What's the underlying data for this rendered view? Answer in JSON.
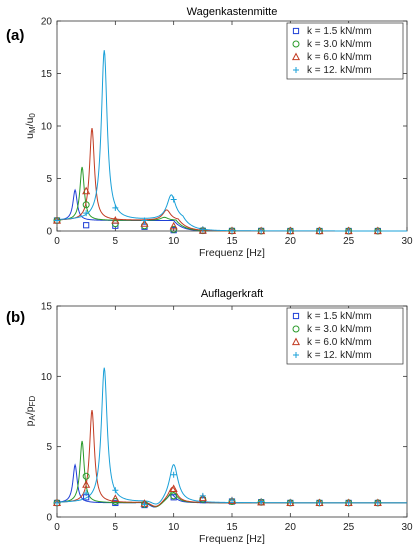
{
  "chart_data": [
    {
      "panel_label": "(a)",
      "type": "line",
      "title": "Wagenkastenmitte",
      "xlabel": "Frequenz [Hz]",
      "ylabel": "u_M/u_0",
      "xlim": [
        0,
        30
      ],
      "ylim": [
        0,
        20
      ],
      "xticks": [
        0,
        5,
        10,
        15,
        20,
        25,
        30
      ],
      "yticks": [
        0,
        5,
        10,
        15,
        20
      ],
      "legend_position": "top-right",
      "grid": false,
      "series": [
        {
          "name": "k = 1.5 kN/mm",
          "marker": "square",
          "color": "#1f3fd6",
          "markers": [
            [
              0,
              1.0
            ],
            [
              2.5,
              0.55
            ],
            [
              5,
              0.5
            ],
            [
              7.5,
              0.4
            ],
            [
              10,
              0.08
            ],
            [
              12.5,
              0.02
            ],
            [
              15,
              0.01
            ],
            [
              17.5,
              0.01
            ],
            [
              20,
              0.0
            ],
            [
              22.5,
              0.0
            ],
            [
              25,
              0.0
            ],
            [
              27.5,
              0.0
            ]
          ],
          "peaks": [
            [
              1.55,
              3.9,
              0.22
            ],
            [
              9.0,
              1.0,
              0.4
            ]
          ],
          "base": 1.0
        },
        {
          "name": "k = 3.0 kN/mm",
          "marker": "circle",
          "color": "#2a9a2a",
          "markers": [
            [
              0,
              1.0
            ],
            [
              2.5,
              2.5
            ],
            [
              5,
              0.7
            ],
            [
              7.5,
              0.5
            ],
            [
              10,
              0.15
            ],
            [
              12.5,
              0.03
            ],
            [
              15,
              0.01
            ],
            [
              17.5,
              0.0
            ],
            [
              20,
              0.0
            ],
            [
              22.5,
              0.0
            ],
            [
              25,
              0.0
            ],
            [
              27.5,
              0.0
            ]
          ],
          "peaks": [
            [
              2.15,
              6.1,
              0.22
            ],
            [
              9.2,
              1.3,
              0.4
            ]
          ],
          "base": 1.0
        },
        {
          "name": "k = 6.0 kN/mm",
          "marker": "triangle",
          "color": "#c23b22",
          "markers": [
            [
              0,
              1.0
            ],
            [
              2.5,
              3.8
            ],
            [
              5,
              1.0
            ],
            [
              7.5,
              0.7
            ],
            [
              10,
              0.45
            ],
            [
              12.5,
              0.05
            ],
            [
              15,
              0.01
            ],
            [
              17.5,
              0.0
            ],
            [
              20,
              0.0
            ],
            [
              22.5,
              0.0
            ],
            [
              25,
              0.0
            ],
            [
              27.5,
              0.0
            ]
          ],
          "peaks": [
            [
              3.0,
              9.8,
              0.25
            ],
            [
              9.4,
              2.0,
              0.4
            ]
          ],
          "base": 1.0
        },
        {
          "name": "k = 12. kN/mm",
          "marker": "plus",
          "color": "#1aa0d8",
          "markers": [
            [
              0,
              1.0
            ],
            [
              2.5,
              1.7
            ],
            [
              5,
              2.2
            ],
            [
              7.5,
              1.0
            ],
            [
              10,
              3.0
            ],
            [
              12.5,
              0.15
            ],
            [
              15,
              0.02
            ],
            [
              17.5,
              0.01
            ],
            [
              20,
              0.0
            ],
            [
              22.5,
              0.0
            ],
            [
              25,
              0.0
            ],
            [
              27.5,
              0.0
            ]
          ],
          "peaks": [
            [
              4.05,
              17.2,
              0.3
            ],
            [
              9.8,
              3.4,
              0.45
            ]
          ],
          "base": 1.0
        }
      ]
    },
    {
      "panel_label": "(b)",
      "type": "line",
      "title": "Auflagerkraft",
      "xlabel": "Frequenz [Hz]",
      "ylabel": "p_A/p_FD",
      "xlim": [
        0,
        30
      ],
      "ylim": [
        0,
        15
      ],
      "xticks": [
        0,
        5,
        10,
        15,
        20,
        25,
        30
      ],
      "yticks": [
        0,
        5,
        10,
        15
      ],
      "legend_position": "top-right",
      "grid": false,
      "series": [
        {
          "name": "k = 1.5 kN/mm",
          "marker": "square",
          "color": "#1f3fd6",
          "markers": [
            [
              0,
              1.0
            ],
            [
              2.5,
              1.4
            ],
            [
              5,
              1.0
            ],
            [
              7.5,
              0.85
            ],
            [
              10,
              1.4
            ],
            [
              12.5,
              1.2
            ],
            [
              15,
              1.1
            ],
            [
              17.5,
              1.05
            ],
            [
              20,
              1.0
            ],
            [
              22.5,
              1.0
            ],
            [
              25,
              1.0
            ],
            [
              27.5,
              1.0
            ]
          ],
          "peaks": [
            [
              1.55,
              3.7,
              0.22
            ],
            [
              9.8,
              1.6,
              0.45
            ]
          ],
          "base": 1.0
        },
        {
          "name": "k = 3.0 kN/mm",
          "marker": "circle",
          "color": "#2a9a2a",
          "markers": [
            [
              0,
              1.0
            ],
            [
              2.5,
              2.9
            ],
            [
              5,
              1.1
            ],
            [
              7.5,
              0.9
            ],
            [
              10,
              1.5
            ],
            [
              12.5,
              1.25
            ],
            [
              15,
              1.1
            ],
            [
              17.5,
              1.05
            ],
            [
              20,
              1.0
            ],
            [
              22.5,
              1.0
            ],
            [
              25,
              1.0
            ],
            [
              27.5,
              1.0
            ]
          ],
          "peaks": [
            [
              2.15,
              5.4,
              0.22
            ],
            [
              9.9,
              1.8,
              0.45
            ]
          ],
          "base": 1.0
        },
        {
          "name": "k = 6.0 kN/mm",
          "marker": "triangle",
          "color": "#c23b22",
          "markers": [
            [
              0,
              1.0
            ],
            [
              2.5,
              2.3
            ],
            [
              5,
              1.3
            ],
            [
              7.5,
              0.95
            ],
            [
              10,
              2.0
            ],
            [
              12.5,
              1.35
            ],
            [
              15,
              1.15
            ],
            [
              17.5,
              1.05
            ],
            [
              20,
              1.0
            ],
            [
              22.5,
              1.0
            ],
            [
              25,
              1.0
            ],
            [
              27.5,
              1.0
            ]
          ],
          "peaks": [
            [
              3.0,
              7.6,
              0.25
            ],
            [
              9.9,
              2.1,
              0.45
            ]
          ],
          "base": 1.0
        },
        {
          "name": "k = 12. kN/mm",
          "marker": "plus",
          "color": "#1aa0d8",
          "markers": [
            [
              0,
              1.0
            ],
            [
              2.5,
              1.7
            ],
            [
              5,
              1.9
            ],
            [
              7.5,
              0.9
            ],
            [
              10,
              3.0
            ],
            [
              12.5,
              1.5
            ],
            [
              15,
              1.2
            ],
            [
              17.5,
              1.1
            ],
            [
              20,
              1.05
            ],
            [
              22.5,
              1.0
            ],
            [
              25,
              1.0
            ],
            [
              27.5,
              1.0
            ]
          ],
          "peaks": [
            [
              4.05,
              10.6,
              0.3
            ],
            [
              10.0,
              3.7,
              0.45
            ]
          ],
          "base": 1.0
        }
      ]
    }
  ]
}
